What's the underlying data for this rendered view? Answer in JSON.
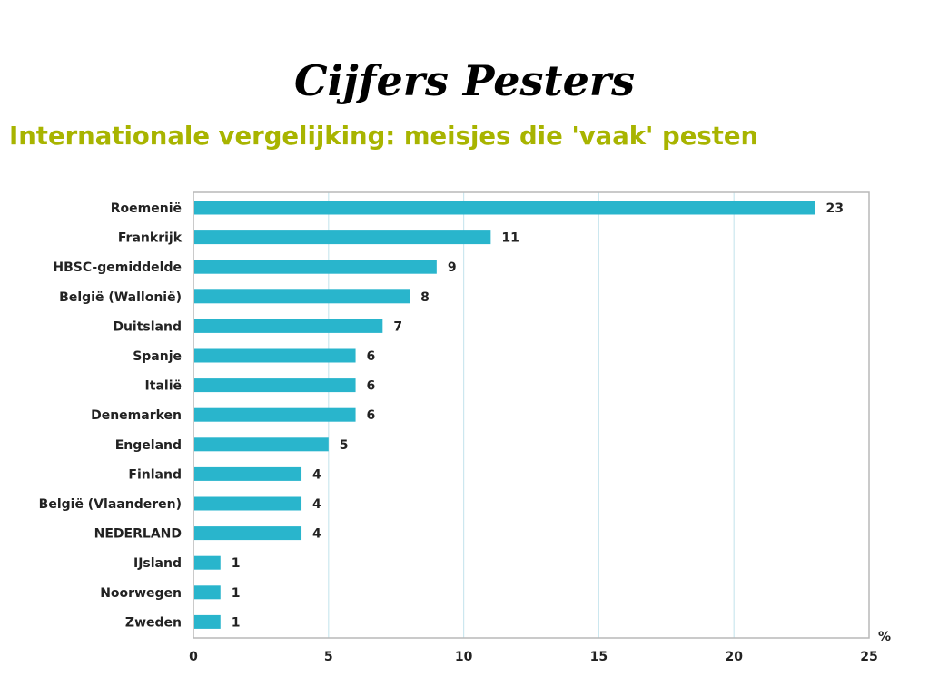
{
  "slide": {
    "title": "Cijfers Pesters"
  },
  "chart_data": {
    "type": "bar",
    "orientation": "horizontal",
    "title": "Internationale vergelijking: meisjes die 'vaak' pesten",
    "xlabel": "",
    "ylabel": "",
    "unit": "%",
    "categories": [
      "Roemenië",
      "Frankrijk",
      "HBSC-gemiddelde",
      "België (Wallonië)",
      "Duitsland",
      "Spanje",
      "Italië",
      "Denemarken",
      "Engeland",
      "Finland",
      "België (Vlaanderen)",
      "NEDERLAND",
      "IJsland",
      "Noorwegen",
      "Zweden"
    ],
    "values": [
      23,
      11,
      9,
      8,
      7,
      6,
      6,
      6,
      5,
      4,
      4,
      4,
      1,
      1,
      1
    ],
    "xlim": [
      0,
      25
    ],
    "xticks": [
      0,
      5,
      10,
      15,
      20,
      25
    ],
    "grid": true,
    "bar_color": "#29b5cc",
    "grid_color": "#cce7ef",
    "frame_color": "#b8b8b8"
  }
}
